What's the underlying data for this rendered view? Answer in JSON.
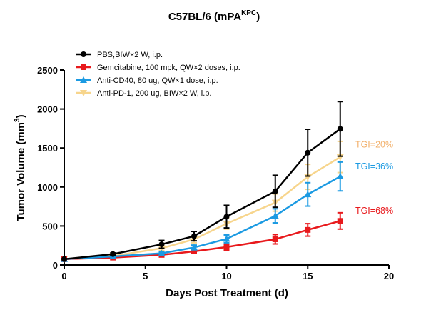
{
  "chart_data": {
    "type": "line",
    "title": "C57BL/6 (mPA",
    "title_sup": "KPC",
    "title_close": ")",
    "xlabel": "Days Post Treatment (d)",
    "ylabel": "Tumor Volume (mm",
    "ylabel_sup": "3",
    "ylabel_close": ")",
    "xlim": [
      0,
      20
    ],
    "ylim": [
      0,
      2500
    ],
    "xticks": [
      0,
      5,
      10,
      15,
      20
    ],
    "yticks": [
      0,
      500,
      1000,
      1500,
      2000,
      2500
    ],
    "grid": false,
    "legend_position": "top-left",
    "series": [
      {
        "name": "PBS,BIW×2 W, i.p.",
        "color": "#000000",
        "marker": "circle",
        "x": [
          0,
          3,
          6,
          8,
          10,
          13,
          15,
          17
        ],
        "y": [
          75,
          140,
          265,
          370,
          620,
          945,
          1440,
          1745
        ],
        "err": [
          0,
          15,
          50,
          60,
          145,
          205,
          300,
          350
        ]
      },
      {
        "name": "Gemcitabine, 100 mpk, QW×2 doses, i.p.",
        "color": "#e8191c",
        "marker": "square",
        "x": [
          0,
          3,
          6,
          8,
          10,
          13,
          15,
          17
        ],
        "y": [
          75,
          95,
          130,
          175,
          230,
          330,
          450,
          565
        ],
        "err": [
          0,
          10,
          20,
          25,
          40,
          60,
          80,
          105
        ]
      },
      {
        "name": "Anti-CD40, 80 ug, QW×1 dose, i.p.",
        "color": "#1b9ae2",
        "marker": "triangle-up",
        "x": [
          0,
          3,
          6,
          8,
          10,
          13,
          15,
          17
        ],
        "y": [
          75,
          110,
          150,
          225,
          335,
          630,
          905,
          1135
        ],
        "err": [
          0,
          10,
          15,
          30,
          50,
          90,
          150,
          185
        ]
      },
      {
        "name": "Anti-PD-1, 200 ug, BIW×2 W, i.p.",
        "color": "#f7d58c",
        "marker": "triangle-down",
        "x": [
          0,
          3,
          6,
          8,
          10,
          13,
          15,
          17
        ],
        "y": [
          75,
          115,
          215,
          330,
          530,
          800,
          1130,
          1385
        ],
        "err": [
          0,
          10,
          30,
          45,
          70,
          110,
          160,
          200
        ]
      }
    ],
    "annotations": [
      {
        "text": "TGI=20%",
        "color": "#f2b06b",
        "x": 19.1,
        "y": 1505
      },
      {
        "text": "TGI=36%",
        "color": "#1b9ae2",
        "x": 19.1,
        "y": 1225
      },
      {
        "text": "TGI=68%",
        "color": "#e8191c",
        "x": 19.1,
        "y": 660
      }
    ]
  }
}
